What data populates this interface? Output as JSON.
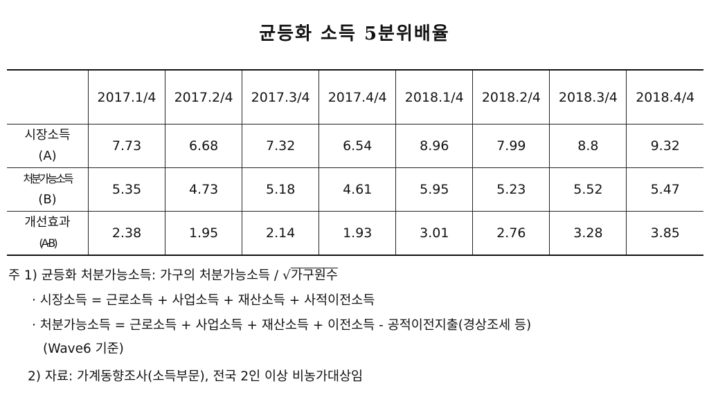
{
  "title": "균등화 소득 5분위배율",
  "table": {
    "header": [
      "",
      "2017.1/4",
      "2017.2/4",
      "2017.3/4",
      "2017.4/4",
      "2018.1/4",
      "2018.2/4",
      "2018.3/4",
      "2018.4/4"
    ],
    "rows": [
      {
        "label": [
          "시장소득",
          "(A)"
        ],
        "values": [
          "7.73",
          "6.68",
          "7.32",
          "6.54",
          "8.96",
          "7.99",
          "8.8",
          "9.32"
        ]
      },
      {
        "label": [
          "처분가능소득",
          "(B)"
        ],
        "values": [
          "5.35",
          "4.73",
          "5.18",
          "4.61",
          "5.95",
          "5.23",
          "5.52",
          "5.47"
        ]
      },
      {
        "label": [
          "개선효과",
          "(A-B)"
        ],
        "values": [
          "2.38",
          "1.95",
          "2.14",
          "1.93",
          "3.01",
          "2.76",
          "3.28",
          "3.85"
        ]
      }
    ]
  },
  "notes": {
    "line1": {
      "marker": "주 1)",
      "text": "균등화 처분가능소득: 가구의 처분가능소득 /",
      "root": "√",
      "radicand": "가구원수"
    },
    "bullets": [
      "· 시장소득 = 근로소득 + 사업소득 + 재산소득 + 사적이전소득",
      "· 처분가능소득 = 근로소득 + 사업소득 + 재산소득 + 이전소득 - 공적이전지출(경상조세 등)"
    ],
    "continuation": "(Wave6 기준)",
    "line2": {
      "marker": "2)",
      "text": "자료: 가계동향조사(소득부문), 전국 2인 이상 비농가대상임"
    }
  }
}
